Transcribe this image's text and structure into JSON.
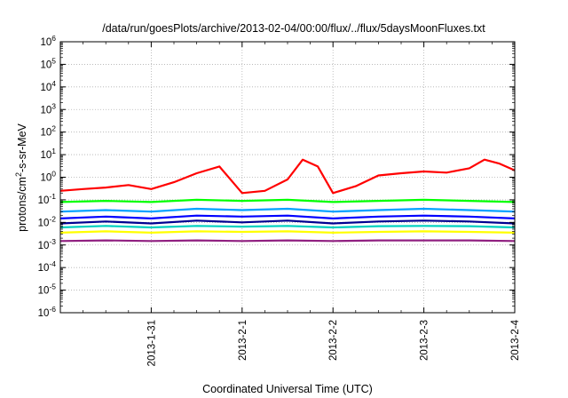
{
  "chart_data": {
    "type": "line",
    "title": "/data/run/goesPlots/archive/2013-02-04/00:00/flux/../flux/5daysMoonFluxes.txt",
    "xlabel": "Coordinated Universal Time (UTC)",
    "ylabel": "protons/cm²-s-sr-MeV",
    "ylabel_parts": {
      "pre": "protons/cm",
      "sup": "2",
      "post": "-s-sr-MeV"
    },
    "yscale": "log",
    "ylim": [
      1e-06,
      1000000.0
    ],
    "xlim": [
      "2013-01-30T00:00",
      "2013-02-04T00:00"
    ],
    "x_ticks": [
      "2013-1-31",
      "2013-2-1",
      "2013-2-2",
      "2013-2-3",
      "2013-2-4"
    ],
    "y_ticks": [
      {
        "base": "10",
        "exp": "-6"
      },
      {
        "base": "10",
        "exp": "-5"
      },
      {
        "base": "10",
        "exp": "-4"
      },
      {
        "base": "10",
        "exp": "-3"
      },
      {
        "base": "10",
        "exp": "-2"
      },
      {
        "base": "10",
        "exp": "-1"
      },
      {
        "base": "10",
        "exp": "0"
      },
      {
        "base": "10",
        "exp": "1"
      },
      {
        "base": "10",
        "exp": "2"
      },
      {
        "base": "10",
        "exp": "3"
      },
      {
        "base": "10",
        "exp": "4"
      },
      {
        "base": "10",
        "exp": "5"
      },
      {
        "base": "10",
        "exp": "6"
      }
    ],
    "grid": true,
    "legend": "none",
    "series": [
      {
        "color": "#ff0000",
        "x": [
          "2013-01-30T00:00",
          "2013-01-30T06:00",
          "2013-01-30T12:00",
          "2013-01-30T18:00",
          "2013-01-31T00:00",
          "2013-01-31T06:00",
          "2013-01-31T12:00",
          "2013-01-31T18:00",
          "2013-02-01T00:00",
          "2013-02-01T06:00",
          "2013-02-01T12:00",
          "2013-02-01T16:00",
          "2013-02-01T20:00",
          "2013-02-02T00:00",
          "2013-02-02T06:00",
          "2013-02-02T12:00",
          "2013-02-02T18:00",
          "2013-02-03T00:00",
          "2013-02-03T06:00",
          "2013-02-03T12:00",
          "2013-02-03T16:00",
          "2013-02-03T20:00",
          "2013-02-04T00:00"
        ],
        "y": [
          0.25,
          0.3,
          0.35,
          0.45,
          0.3,
          0.6,
          1.5,
          3.0,
          0.2,
          0.25,
          0.8,
          6.0,
          3.0,
          0.2,
          0.4,
          1.2,
          1.5,
          1.8,
          1.6,
          2.5,
          6.0,
          4.0,
          2.0
        ]
      },
      {
        "color": "#00ff00",
        "x": [
          "2013-01-30T00:00",
          "2013-01-30T12:00",
          "2013-01-31T00:00",
          "2013-01-31T12:00",
          "2013-02-01T00:00",
          "2013-02-01T12:00",
          "2013-02-02T00:00",
          "2013-02-02T12:00",
          "2013-02-03T00:00",
          "2013-02-03T12:00",
          "2013-02-04T00:00"
        ],
        "y": [
          0.08,
          0.09,
          0.08,
          0.1,
          0.09,
          0.1,
          0.08,
          0.09,
          0.1,
          0.09,
          0.08
        ]
      },
      {
        "color": "#00a0ff",
        "x": [
          "2013-01-30T00:00",
          "2013-01-30T12:00",
          "2013-01-31T00:00",
          "2013-01-31T12:00",
          "2013-02-01T00:00",
          "2013-02-01T12:00",
          "2013-02-02T00:00",
          "2013-02-02T12:00",
          "2013-02-03T00:00",
          "2013-02-03T12:00",
          "2013-02-04T00:00"
        ],
        "y": [
          0.03,
          0.035,
          0.03,
          0.04,
          0.035,
          0.04,
          0.03,
          0.035,
          0.04,
          0.035,
          0.03
        ]
      },
      {
        "color": "#0000ff",
        "x": [
          "2013-01-30T00:00",
          "2013-01-30T12:00",
          "2013-01-31T00:00",
          "2013-01-31T12:00",
          "2013-02-01T00:00",
          "2013-02-01T12:00",
          "2013-02-02T00:00",
          "2013-02-02T12:00",
          "2013-02-03T00:00",
          "2013-02-03T12:00",
          "2013-02-04T00:00"
        ],
        "y": [
          0.015,
          0.018,
          0.015,
          0.02,
          0.018,
          0.02,
          0.015,
          0.018,
          0.02,
          0.018,
          0.015
        ]
      },
      {
        "color": "#000090",
        "x": [
          "2013-01-30T00:00",
          "2013-01-30T12:00",
          "2013-01-31T00:00",
          "2013-01-31T12:00",
          "2013-02-01T00:00",
          "2013-02-01T12:00",
          "2013-02-02T00:00",
          "2013-02-02T12:00",
          "2013-02-03T00:00",
          "2013-02-03T12:00",
          "2013-02-04T00:00"
        ],
        "y": [
          0.009,
          0.011,
          0.009,
          0.012,
          0.01,
          0.012,
          0.009,
          0.011,
          0.012,
          0.011,
          0.009
        ]
      },
      {
        "color": "#00d0c0",
        "x": [
          "2013-01-30T00:00",
          "2013-01-30T12:00",
          "2013-01-31T00:00",
          "2013-01-31T12:00",
          "2013-02-01T00:00",
          "2013-02-01T12:00",
          "2013-02-02T00:00",
          "2013-02-02T12:00",
          "2013-02-03T00:00",
          "2013-02-03T12:00",
          "2013-02-04T00:00"
        ],
        "y": [
          0.006,
          0.007,
          0.006,
          0.007,
          0.0065,
          0.007,
          0.006,
          0.0068,
          0.007,
          0.0068,
          0.006
        ]
      },
      {
        "color": "#ffff00",
        "x": [
          "2013-01-30T00:00",
          "2013-01-30T12:00",
          "2013-01-31T00:00",
          "2013-01-31T12:00",
          "2013-02-01T00:00",
          "2013-02-01T12:00",
          "2013-02-02T00:00",
          "2013-02-02T12:00",
          "2013-02-03T00:00",
          "2013-02-03T12:00",
          "2013-02-04T00:00"
        ],
        "y": [
          0.0035,
          0.004,
          0.0035,
          0.004,
          0.0038,
          0.004,
          0.0035,
          0.0038,
          0.004,
          0.0038,
          0.0035
        ]
      },
      {
        "color": "#902080",
        "x": [
          "2013-01-30T00:00",
          "2013-01-30T12:00",
          "2013-01-31T00:00",
          "2013-01-31T12:00",
          "2013-02-01T00:00",
          "2013-02-01T12:00",
          "2013-02-02T00:00",
          "2013-02-02T12:00",
          "2013-02-03T00:00",
          "2013-02-03T12:00",
          "2013-02-04T00:00"
        ],
        "y": [
          0.0015,
          0.0016,
          0.0015,
          0.0016,
          0.0015,
          0.0016,
          0.0015,
          0.0016,
          0.0016,
          0.0016,
          0.0015
        ]
      }
    ]
  }
}
